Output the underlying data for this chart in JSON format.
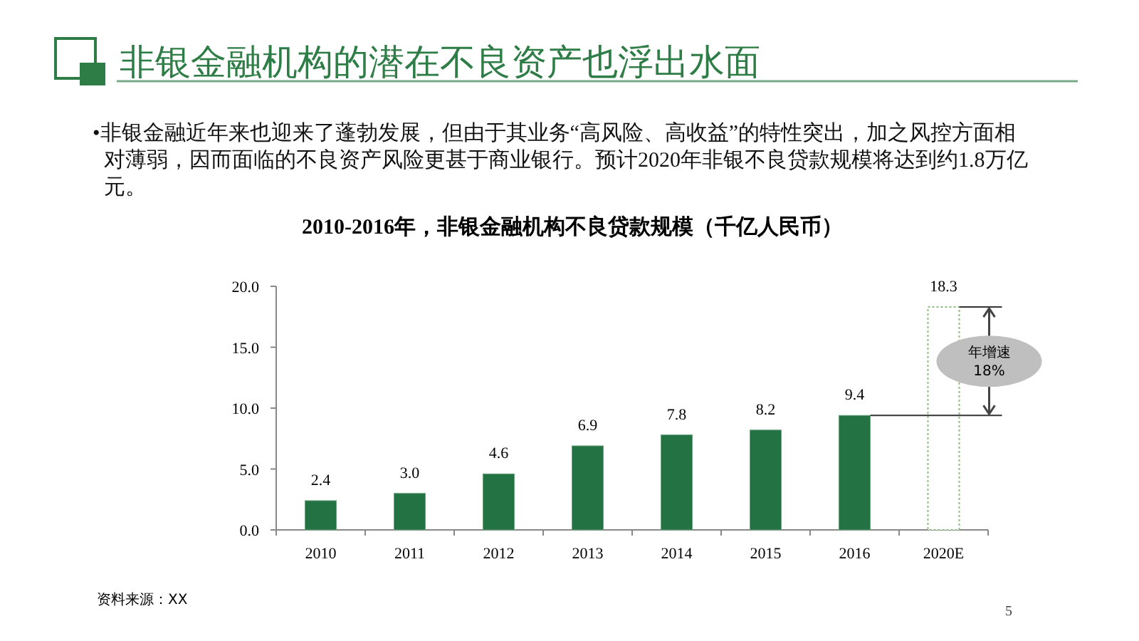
{
  "chart_data": {
    "type": "bar",
    "title": "非银金融机构的潜在不良资产也浮出水面",
    "subtitle": "2010-2016年，非银金融机构不良贷款规模（千亿人民币）",
    "categories": [
      "2010",
      "2011",
      "2012",
      "2013",
      "2014",
      "2015",
      "2016",
      "2020E"
    ],
    "values": [
      2.4,
      3.0,
      4.6,
      6.9,
      7.8,
      8.2,
      9.4,
      18.3
    ],
    "value_labels": [
      "2.4",
      "3.0",
      "4.6",
      "6.9",
      "7.8",
      "8.2",
      "9.4",
      "18.3"
    ],
    "colors": [
      "#237244",
      "#237244",
      "#237244",
      "#237244",
      "#237244",
      "#237244",
      "#237244",
      "#ffffff"
    ],
    "ylim": [
      0,
      20
    ],
    "yticks": [
      {
        "value": 0,
        "label": "0.0"
      },
      {
        "value": 5,
        "label": "5.0"
      },
      {
        "value": 10,
        "label": "10.0"
      },
      {
        "value": 15,
        "label": "15.0"
      },
      {
        "value": 20,
        "label": "20.0"
      }
    ],
    "grid": false,
    "annotations": [
      "•非银金融近年来也迎来了蓬勃发展，但由于其业务“高风险、高收益”的特性突出，加之风控方面相对薄弱，因而面临的不良资产风险更甚于商业银行。预计2020年非银不良贷款规模将达到约1.8万亿元。",
      "年增速 18%",
      "资料来源：XX",
      "5"
    ]
  }
}
